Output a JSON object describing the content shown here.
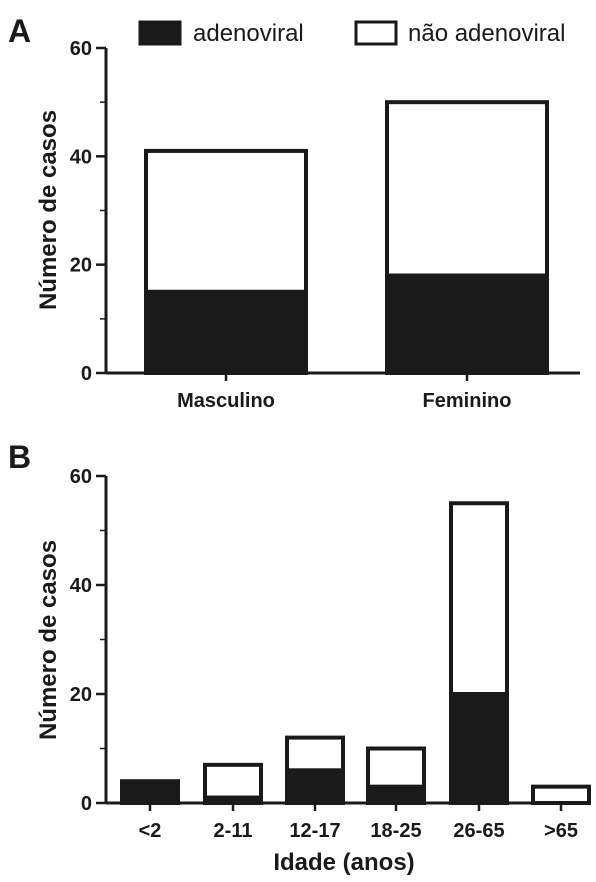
{
  "legend": {
    "items": [
      {
        "label": "adenoviral",
        "color": "#1a1a1a"
      },
      {
        "label": "não adenoviral",
        "color": "#ffffff"
      }
    ]
  },
  "chart_data": [
    {
      "panel": "A",
      "type": "bar",
      "stacked": true,
      "categories": [
        "Masculino",
        "Feminino"
      ],
      "series": [
        {
          "name": "adenoviral",
          "values": [
            15,
            18
          ]
        },
        {
          "name": "não adenoviral",
          "values": [
            26,
            32
          ]
        }
      ],
      "totals": [
        41,
        50
      ],
      "ylabel": "Número de casos",
      "xlabel": "",
      "ylim": [
        0,
        60
      ],
      "yticks": [
        0,
        20,
        40,
        60
      ],
      "grid": false
    },
    {
      "panel": "B",
      "type": "bar",
      "stacked": true,
      "categories": [
        "<2",
        "2-11",
        "12-17",
        "18-25",
        "26-65",
        ">65"
      ],
      "series": [
        {
          "name": "adenoviral",
          "values": [
            3.5,
            1,
            6,
            3,
            20,
            0
          ]
        },
        {
          "name": "não adenoviral",
          "values": [
            0.5,
            6,
            6,
            7,
            35,
            3
          ]
        }
      ],
      "totals": [
        4,
        7,
        12,
        10,
        55,
        3
      ],
      "ylabel": "Número de casos",
      "xlabel": "Idade (anos)",
      "ylim": [
        0,
        60
      ],
      "yticks": [
        0,
        20,
        40,
        60
      ],
      "grid": false
    }
  ]
}
